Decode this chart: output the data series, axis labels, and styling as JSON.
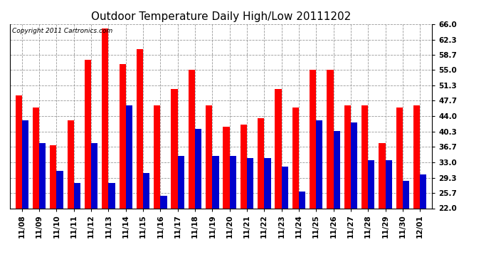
{
  "title": "Outdoor Temperature Daily High/Low 20111202",
  "copyright": "Copyright 2011 Cartronics.com",
  "dates": [
    "11/08",
    "11/09",
    "11/10",
    "11/11",
    "11/12",
    "11/13",
    "11/14",
    "11/15",
    "11/16",
    "11/17",
    "11/18",
    "11/19",
    "11/20",
    "11/21",
    "11/22",
    "11/23",
    "11/24",
    "11/25",
    "11/26",
    "11/27",
    "11/28",
    "11/29",
    "11/30",
    "12/01"
  ],
  "highs": [
    49.0,
    46.0,
    37.0,
    43.0,
    57.5,
    65.0,
    56.5,
    60.0,
    46.5,
    50.5,
    55.0,
    46.5,
    41.5,
    42.0,
    43.5,
    50.5,
    46.0,
    55.0,
    55.0,
    46.5,
    46.5,
    37.5,
    46.0,
    46.5
  ],
  "lows": [
    43.0,
    37.5,
    31.0,
    28.0,
    37.5,
    28.0,
    46.5,
    30.5,
    25.0,
    34.5,
    41.0,
    34.5,
    34.5,
    34.0,
    34.0,
    32.0,
    26.0,
    43.0,
    40.5,
    42.5,
    33.5,
    33.5,
    28.5,
    30.0
  ],
  "high_color": "#ff0000",
  "low_color": "#0000cc",
  "bg_color": "#ffffff",
  "plot_bg": "#ffffff",
  "grid_color": "#999999",
  "ylim_min": 22.0,
  "ylim_max": 66.0,
  "yticks": [
    22.0,
    25.7,
    29.3,
    33.0,
    36.7,
    40.3,
    44.0,
    47.7,
    51.3,
    55.0,
    58.7,
    62.3,
    66.0
  ],
  "bar_width": 0.38,
  "title_fontsize": 11,
  "tick_fontsize": 7.5,
  "copyright_fontsize": 6.5
}
